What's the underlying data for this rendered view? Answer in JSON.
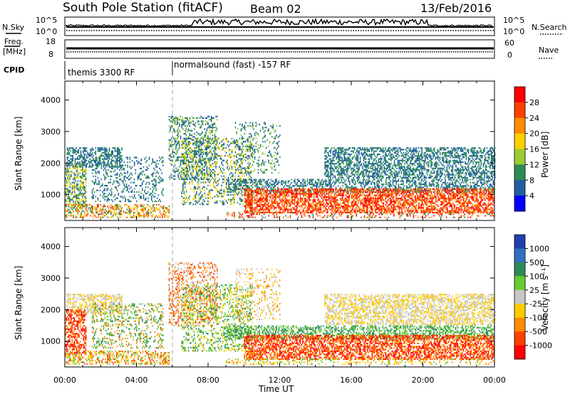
{
  "header": {
    "station": "South Pole Station (fitACF)",
    "beam": "Beam 02",
    "date": "13/Feb/2016"
  },
  "panels": {
    "nsky_label": "N.Sky",
    "nsky_ticks": [
      "10^5",
      "10^0"
    ],
    "nsearch_label": "N.Search",
    "freq_label_top": "Freq.",
    "freq_label_bottom": "[MHz]",
    "freq_ticks": [
      "18",
      "8"
    ],
    "nave_ticks": [
      "60",
      "0"
    ],
    "nave_label": "Nave",
    "cpid_label": "CPID",
    "cpid_segments": [
      {
        "label": "themis 3300 RF",
        "start_hour": 0
      },
      {
        "label": "normalsound (fast) -157 RF",
        "start_hour": 6
      }
    ]
  },
  "chart_data": [
    {
      "type": "heatmap",
      "name": "power-panel",
      "ylabel": "Slant Range [km]",
      "yticks": [
        1000,
        2000,
        3000,
        4000
      ],
      "ylim": [
        180,
        4600
      ],
      "xlim_hours": [
        0,
        24
      ],
      "colorbar": {
        "label": "Power [dB]",
        "ticks": [
          "28",
          "24",
          "20",
          "16",
          "12",
          "8",
          "4"
        ],
        "colors": [
          "#ff0000",
          "#ff4000",
          "#ff8c00",
          "#ffd000",
          "#9acd32",
          "#2e8b57",
          "#1f5fa0",
          "#0000ff"
        ]
      }
    },
    {
      "type": "heatmap",
      "name": "velocity-panel",
      "ylabel": "Slant Range [km]",
      "yticks": [
        1000,
        2000,
        3000,
        4000
      ],
      "ylim": [
        180,
        4600
      ],
      "xlim_hours": [
        0,
        24
      ],
      "xtick_labels": [
        "00:00",
        "04:00",
        "08:00",
        "12:00",
        "16:00",
        "20:00",
        "00:00"
      ],
      "xlabel": "Time UT",
      "colorbar": {
        "label": "Velocity [m s⁻¹]",
        "ticks": [
          "1000",
          "500",
          "100",
          "25",
          "-25",
          "-100",
          "-500",
          "-1000"
        ],
        "colors": [
          "#2040b0",
          "#3070c0",
          "#2e8b57",
          "#66cc33",
          "#c8c8c8",
          "#ffcc00",
          "#ff8c00",
          "#ff4000",
          "#ff0000"
        ]
      }
    }
  ]
}
